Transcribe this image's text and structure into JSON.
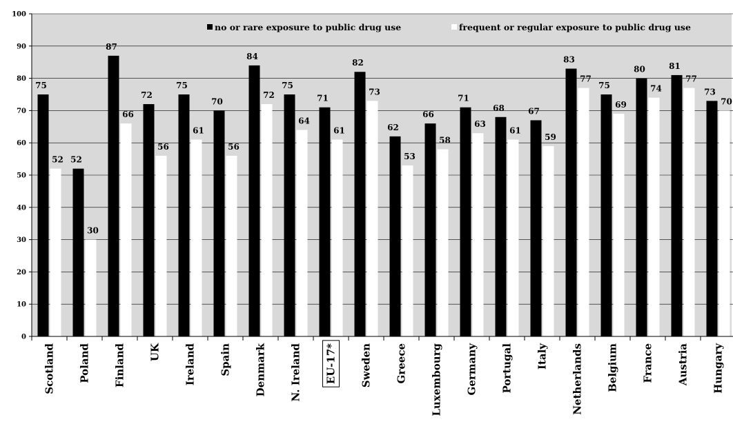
{
  "chart_data": {
    "type": "bar",
    "categories": [
      "Scotland",
      "Poland",
      "Finland",
      "UK",
      "Ireland",
      "Spain",
      "Denmark",
      "N. Ireland",
      "EU-17*",
      "Sweden",
      "Greece",
      "Luxembourg",
      "Germany",
      "Portugal",
      "Italy",
      "Netherlands",
      "Belgium",
      "France",
      "Austria",
      "Hungary"
    ],
    "highlighted_category": "EU-17*",
    "series": [
      {
        "name": "no or rare exposure to public drug use",
        "color": "#000000",
        "values": [
          75,
          52,
          87,
          72,
          75,
          70,
          84,
          75,
          71,
          82,
          62,
          66,
          71,
          68,
          67,
          83,
          75,
          80,
          81,
          73
        ],
        "labels": [
          "75",
          "52",
          "87",
          "72",
          "75",
          "70",
          "84",
          "75",
          "71",
          "82",
          "62",
          "66",
          "71",
          "68",
          "67",
          "83",
          "75",
          "80",
          "81",
          "73"
        ]
      },
      {
        "name": "frequent or regular exposure to public drug use",
        "color": "#ffffff",
        "values": [
          52,
          30,
          66,
          56,
          61,
          56,
          72,
          64,
          61,
          73,
          53,
          58,
          63,
          61,
          59,
          77,
          69,
          74,
          77,
          70
        ],
        "labels": [
          "52",
          "30",
          "66",
          "56",
          "61",
          "56",
          "72",
          "64",
          "61",
          "73",
          "53",
          "58",
          "63",
          "61",
          "59",
          "77",
          "69",
          "74",
          "77",
          "70"
        ]
      }
    ],
    "y_ticks": [
      "0",
      "10",
      "20",
      "30",
      "40",
      "50",
      "60",
      "70",
      "80",
      "90",
      "100"
    ],
    "ylim": [
      0,
      100
    ],
    "plot_background": "#d9d9d9",
    "grid": true,
    "legend_position": "top-right"
  }
}
